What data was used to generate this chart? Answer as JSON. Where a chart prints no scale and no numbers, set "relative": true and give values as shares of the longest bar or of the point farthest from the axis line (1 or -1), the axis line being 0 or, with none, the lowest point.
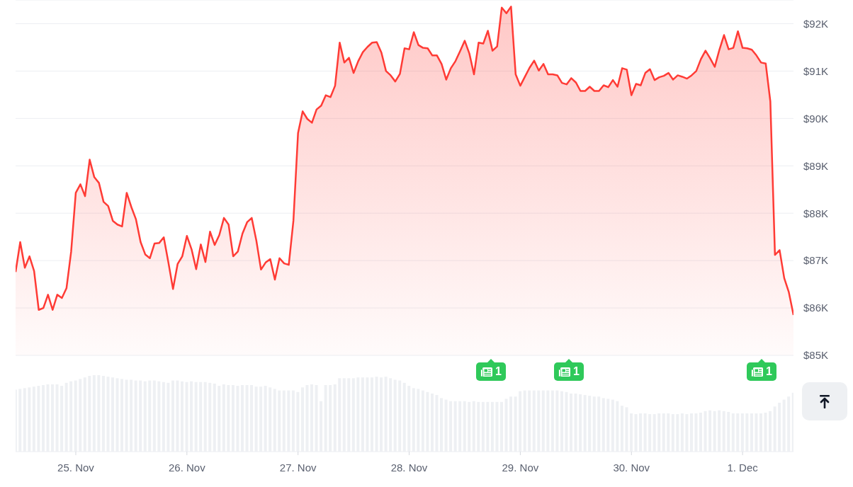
{
  "chart_data": [
    {
      "type": "area",
      "tick_labels": "y",
      "grid": "y",
      "x": [
        "--11-24T11:00",
        "--11-24T12:00",
        "--11-24T13:00",
        "--11-24T14:00",
        "--11-24T15:00",
        "--11-24T16:00",
        "--11-24T17:00",
        "--11-24T18:00",
        "--11-24T19:00",
        "--11-24T20:00",
        "--11-24T21:00",
        "--11-24T22:00",
        "--11-24T23:00",
        "--11-25T00:00",
        "--11-25T01:00",
        "--11-25T02:00",
        "--11-25T03:00",
        "--11-25T04:00",
        "--11-25T05:00",
        "--11-25T06:00",
        "--11-25T07:00",
        "--11-25T08:00",
        "--11-25T09:00",
        "--11-25T10:00",
        "--11-25T11:00",
        "--11-25T12:00",
        "--11-25T13:00",
        "--11-25T14:00",
        "--11-25T15:00",
        "--11-25T16:00",
        "--11-25T17:00",
        "--11-25T18:00",
        "--11-25T19:00",
        "--11-25T20:00",
        "--11-25T21:00",
        "--11-25T22:00",
        "--11-25T23:00",
        "--11-26T00:00",
        "--11-26T01:00",
        "--11-26T02:00",
        "--11-26T03:00",
        "--11-26T04:00",
        "--11-26T05:00",
        "--11-26T06:00",
        "--11-26T07:00",
        "--11-26T08:00",
        "--11-26T09:00",
        "--11-26T10:00",
        "--11-26T11:00",
        "--11-26T12:00",
        "--11-26T13:00",
        "--11-26T14:00",
        "--11-26T15:00",
        "--11-26T16:00",
        "--11-26T17:00",
        "--11-26T18:00",
        "--11-26T19:00",
        "--11-26T20:00",
        "--11-26T21:00",
        "--11-26T22:00",
        "--11-26T23:00",
        "--11-27T00:00",
        "--11-27T01:00",
        "--11-27T02:00",
        "--11-27T03:00",
        "--11-27T04:00",
        "--11-27T05:00",
        "--11-27T06:00",
        "--11-27T07:00",
        "--11-27T08:00",
        "--11-27T09:00",
        "--11-27T10:00",
        "--11-27T11:00",
        "--11-27T12:00",
        "--11-27T13:00",
        "--11-27T14:00",
        "--11-27T15:00",
        "--11-27T16:00",
        "--11-27T17:00",
        "--11-27T18:00",
        "--11-27T19:00",
        "--11-27T20:00",
        "--11-27T21:00",
        "--11-27T22:00",
        "--11-27T23:00",
        "--11-28T00:00",
        "--11-28T01:00",
        "--11-28T02:00",
        "--11-28T03:00",
        "--11-28T04:00",
        "--11-28T05:00",
        "--11-28T06:00",
        "--11-28T07:00",
        "--11-28T08:00",
        "--11-28T09:00",
        "--11-28T10:00",
        "--11-28T11:00",
        "--11-28T12:00",
        "--11-28T13:00",
        "--11-28T14:00",
        "--11-28T15:00",
        "--11-28T16:00",
        "--11-28T17:00",
        "--11-28T18:00",
        "--11-28T19:00",
        "--11-28T20:00",
        "--11-28T21:00",
        "--11-28T22:00",
        "--11-28T23:00",
        "--11-29T00:00",
        "--11-29T01:00",
        "--11-29T02:00",
        "--11-29T03:00",
        "--11-29T04:00",
        "--11-29T05:00",
        "--11-29T06:00",
        "--11-29T07:00",
        "--11-29T08:00",
        "--11-29T09:00",
        "--11-29T10:00",
        "--11-29T11:00",
        "--11-29T12:00",
        "--11-29T13:00",
        "--11-29T14:00",
        "--11-29T15:00",
        "--11-29T16:00",
        "--11-29T17:00",
        "--11-29T18:00",
        "--11-29T19:00",
        "--11-29T20:00",
        "--11-29T21:00",
        "--11-29T22:00",
        "--11-29T23:00",
        "--11-30T00:00",
        "--11-30T01:00",
        "--11-30T02:00",
        "--11-30T03:00",
        "--11-30T04:00",
        "--11-30T05:00",
        "--11-30T06:00",
        "--11-30T07:00",
        "--11-30T08:00",
        "--11-30T09:00",
        "--11-30T10:00",
        "--11-30T11:00",
        "--11-30T12:00",
        "--11-30T13:00",
        "--11-30T14:00",
        "--11-30T15:00",
        "--11-30T16:00",
        "--11-30T17:00",
        "--11-30T18:00",
        "--11-30T19:00",
        "--11-30T20:00",
        "--11-30T21:00",
        "--11-30T22:00",
        "--11-30T23:00",
        "--12-01T00:00",
        "--12-01T01:00",
        "--12-01T02:00",
        "--12-01T03:00",
        "--12-01T04:00",
        "--12-01T05:00",
        "--12-01T06:00",
        "--12-01T07:00",
        "--12-01T08:00",
        "--12-01T09:00",
        "--12-01T10:00",
        "--12-01T11:00"
      ],
      "series": [
        {
          "color": "#ff3b35",
          "values": [
            86760,
            87390,
            86850,
            87090,
            86780,
            85960,
            86000,
            86280,
            85960,
            86280,
            86210,
            86420,
            87190,
            88430,
            88610,
            88360,
            89130,
            88760,
            88640,
            88240,
            88150,
            87840,
            87760,
            87720,
            88430,
            88130,
            87870,
            87390,
            87130,
            87050,
            87360,
            87370,
            87490,
            86960,
            86400,
            86930,
            87090,
            87520,
            87240,
            86820,
            87340,
            86970,
            87610,
            87330,
            87540,
            87900,
            87760,
            87090,
            87190,
            87570,
            87810,
            87900,
            87420,
            86810,
            86960,
            87030,
            86600,
            87050,
            86940,
            86910,
            87840,
            89690,
            90150,
            89990,
            89910,
            90190,
            90270,
            90490,
            90450,
            90690,
            91600,
            91180,
            91280,
            90960,
            91210,
            91400,
            91510,
            91600,
            91610,
            91390,
            91000,
            90910,
            90780,
            90940,
            91480,
            91460,
            91820,
            91550,
            91490,
            91480,
            91330,
            91330,
            91150,
            90820,
            91060,
            91210,
            91420,
            91640,
            91370,
            90930,
            91600,
            91580,
            91850,
            91430,
            91520,
            92340,
            92220,
            92360,
            90930,
            90690,
            90880,
            91070,
            91220,
            91010,
            91150,
            90930,
            90930,
            90910,
            90750,
            90720,
            90850,
            90760,
            90580,
            90580,
            90670,
            90580,
            90580,
            90700,
            90660,
            90810,
            90670,
            91060,
            91030,
            90490,
            90730,
            90700,
            90960,
            91040,
            90810,
            90870,
            90900,
            90960,
            90820,
            90910,
            90880,
            90840,
            90910,
            91000,
            91250,
            91430,
            91270,
            91090,
            91450,
            91760,
            91460,
            91490,
            91840,
            91490,
            91480,
            91450,
            91330,
            91180,
            91160,
            90360,
            87120,
            87220,
            86630,
            86330,
            85850
          ]
        }
      ],
      "xlim": [
        "--11-24T11:00",
        "--12-01T11:00"
      ],
      "ylim": [
        85000,
        92500
      ],
      "yticks": [
        {
          "value": 85000,
          "label": "$85K"
        },
        {
          "value": 86000,
          "label": "$86K"
        },
        {
          "value": 87000,
          "label": "$87K"
        },
        {
          "value": 88000,
          "label": "$88K"
        },
        {
          "value": 89000,
          "label": "$89K"
        },
        {
          "value": 90000,
          "label": "$90K"
        },
        {
          "value": 91000,
          "label": "$91K"
        },
        {
          "value": 92000,
          "label": "$92K"
        }
      ],
      "annotations": [
        "1",
        "1",
        "1"
      ]
    },
    {
      "type": "bar",
      "relative": true,
      "tick_labels": "x",
      "x": [
        "--11-24T11:00",
        "--11-24T12:00",
        "--11-24T13:00",
        "--11-24T14:00",
        "--11-24T15:00",
        "--11-24T16:00",
        "--11-24T17:00",
        "--11-24T18:00",
        "--11-24T19:00",
        "--11-24T20:00",
        "--11-24T21:00",
        "--11-24T22:00",
        "--11-24T23:00",
        "--11-25T00:00",
        "--11-25T01:00",
        "--11-25T02:00",
        "--11-25T03:00",
        "--11-25T04:00",
        "--11-25T05:00",
        "--11-25T06:00",
        "--11-25T07:00",
        "--11-25T08:00",
        "--11-25T09:00",
        "--11-25T10:00",
        "--11-25T11:00",
        "--11-25T12:00",
        "--11-25T13:00",
        "--11-25T14:00",
        "--11-25T15:00",
        "--11-25T16:00",
        "--11-25T17:00",
        "--11-25T18:00",
        "--11-25T19:00",
        "--11-25T20:00",
        "--11-25T21:00",
        "--11-25T22:00",
        "--11-25T23:00",
        "--11-26T00:00",
        "--11-26T01:00",
        "--11-26T02:00",
        "--11-26T03:00",
        "--11-26T04:00",
        "--11-26T05:00",
        "--11-26T06:00",
        "--11-26T07:00",
        "--11-26T08:00",
        "--11-26T09:00",
        "--11-26T10:00",
        "--11-26T11:00",
        "--11-26T12:00",
        "--11-26T13:00",
        "--11-26T14:00",
        "--11-26T15:00",
        "--11-26T16:00",
        "--11-26T17:00",
        "--11-26T18:00",
        "--11-26T19:00",
        "--11-26T20:00",
        "--11-26T21:00",
        "--11-26T22:00",
        "--11-26T23:00",
        "--11-27T00:00",
        "--11-27T01:00",
        "--11-27T02:00",
        "--11-27T03:00",
        "--11-27T04:00",
        "--11-27T05:00",
        "--11-27T06:00",
        "--11-27T07:00",
        "--11-27T08:00",
        "--11-27T09:00",
        "--11-27T10:00",
        "--11-27T11:00",
        "--11-27T12:00",
        "--11-27T13:00",
        "--11-27T14:00",
        "--11-27T15:00",
        "--11-27T16:00",
        "--11-27T17:00",
        "--11-27T18:00",
        "--11-27T19:00",
        "--11-27T20:00",
        "--11-27T21:00",
        "--11-27T22:00",
        "--11-27T23:00",
        "--11-28T00:00",
        "--11-28T01:00",
        "--11-28T02:00",
        "--11-28T03:00",
        "--11-28T04:00",
        "--11-28T05:00",
        "--11-28T06:00",
        "--11-28T07:00",
        "--11-28T08:00",
        "--11-28T09:00",
        "--11-28T10:00",
        "--11-28T11:00",
        "--11-28T12:00",
        "--11-28T13:00",
        "--11-28T14:00",
        "--11-28T15:00",
        "--11-28T16:00",
        "--11-28T17:00",
        "--11-28T18:00",
        "--11-28T19:00",
        "--11-28T20:00",
        "--11-28T21:00",
        "--11-28T22:00",
        "--11-28T23:00",
        "--11-29T00:00",
        "--11-29T01:00",
        "--11-29T02:00",
        "--11-29T03:00",
        "--11-29T04:00",
        "--11-29T05:00",
        "--11-29T06:00",
        "--11-29T07:00",
        "--11-29T08:00",
        "--11-29T09:00",
        "--11-29T10:00",
        "--11-29T11:00",
        "--11-29T12:00",
        "--11-29T13:00",
        "--11-29T14:00",
        "--11-29T15:00",
        "--11-29T16:00",
        "--11-29T17:00",
        "--11-29T18:00",
        "--11-29T19:00",
        "--11-29T20:00",
        "--11-29T21:00",
        "--11-29T22:00",
        "--11-29T23:00",
        "--11-30T00:00",
        "--11-30T01:00",
        "--11-30T02:00",
        "--11-30T03:00",
        "--11-30T04:00",
        "--11-30T05:00",
        "--11-30T06:00",
        "--11-30T07:00",
        "--11-30T08:00",
        "--11-30T09:00",
        "--11-30T10:00",
        "--11-30T11:00",
        "--11-30T12:00",
        "--11-30T13:00",
        "--11-30T14:00",
        "--11-30T15:00",
        "--11-30T16:00",
        "--11-30T17:00",
        "--11-30T18:00",
        "--11-30T19:00",
        "--11-30T20:00",
        "--11-30T21:00",
        "--11-30T22:00",
        "--11-30T23:00",
        "--12-01T00:00",
        "--12-01T01:00",
        "--12-01T02:00",
        "--12-01T03:00",
        "--12-01T04:00",
        "--12-01T05:00",
        "--12-01T06:00",
        "--12-01T07:00",
        "--12-01T08:00",
        "--12-01T09:00",
        "--12-01T10:00",
        "--12-01T11:00"
      ],
      "series": [
        {
          "color": "#eef0f3",
          "values": [
            0.81,
            0.82,
            0.83,
            0.84,
            0.85,
            0.86,
            0.87,
            0.88,
            0.88,
            0.88,
            0.86,
            0.9,
            0.92,
            0.93,
            0.95,
            0.97,
            0.99,
            1.0,
            1.0,
            0.99,
            0.98,
            0.97,
            0.96,
            0.95,
            0.94,
            0.94,
            0.93,
            0.93,
            0.92,
            0.93,
            0.93,
            0.92,
            0.91,
            0.9,
            0.93,
            0.93,
            0.92,
            0.91,
            0.92,
            0.91,
            0.91,
            0.91,
            0.9,
            0.89,
            0.86,
            0.88,
            0.87,
            0.87,
            0.86,
            0.87,
            0.87,
            0.87,
            0.85,
            0.85,
            0.86,
            0.84,
            0.82,
            0.8,
            0.8,
            0.8,
            0.8,
            0.78,
            0.84,
            0.87,
            0.88,
            0.87,
            0.66,
            0.87,
            0.87,
            0.88,
            0.96,
            0.96,
            0.96,
            0.96,
            0.97,
            0.97,
            0.97,
            0.97,
            0.98,
            0.97,
            0.98,
            0.96,
            0.94,
            0.93,
            0.9,
            0.86,
            0.83,
            0.82,
            0.8,
            0.78,
            0.76,
            0.74,
            0.7,
            0.68,
            0.66,
            0.66,
            0.66,
            0.66,
            0.65,
            0.66,
            0.65,
            0.65,
            0.65,
            0.65,
            0.65,
            0.65,
            0.69,
            0.72,
            0.72,
            0.79,
            0.8,
            0.8,
            0.8,
            0.8,
            0.8,
            0.8,
            0.8,
            0.8,
            0.79,
            0.78,
            0.76,
            0.76,
            0.75,
            0.74,
            0.73,
            0.72,
            0.72,
            0.7,
            0.69,
            0.68,
            0.66,
            0.6,
            0.58,
            0.5,
            0.49,
            0.5,
            0.5,
            0.49,
            0.49,
            0.5,
            0.5,
            0.5,
            0.49,
            0.49,
            0.5,
            0.49,
            0.5,
            0.5,
            0.51,
            0.53,
            0.54,
            0.53,
            0.54,
            0.53,
            0.52,
            0.5,
            0.5,
            0.5,
            0.5,
            0.5,
            0.5,
            0.5,
            0.51,
            0.53,
            0.59,
            0.64,
            0.68,
            0.72,
            0.77
          ]
        }
      ],
      "xlim": [
        "--11-24T11:00",
        "--12-01T11:00"
      ],
      "xticks": [
        {
          "value": "--11-25",
          "label": "25. Nov"
        },
        {
          "value": "--11-26",
          "label": "26. Nov"
        },
        {
          "value": "--11-27",
          "label": "27. Nov"
        },
        {
          "value": "--11-28",
          "label": "28. Nov"
        },
        {
          "value": "--11-29",
          "label": "29. Nov"
        },
        {
          "value": "--11-30",
          "label": "30. Nov"
        },
        {
          "value": "--12-01",
          "label": "1. Dec"
        }
      ]
    }
  ]
}
